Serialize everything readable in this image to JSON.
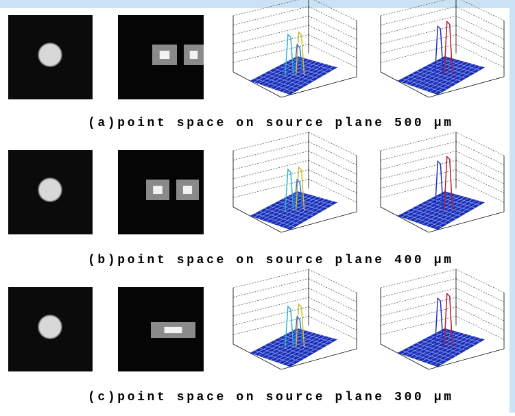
{
  "captions": [
    "(a)point space on source plane 500 μm",
    "(b)point space on source plane 400 μm",
    "(c)point space on source plane 300 μm"
  ]
}
